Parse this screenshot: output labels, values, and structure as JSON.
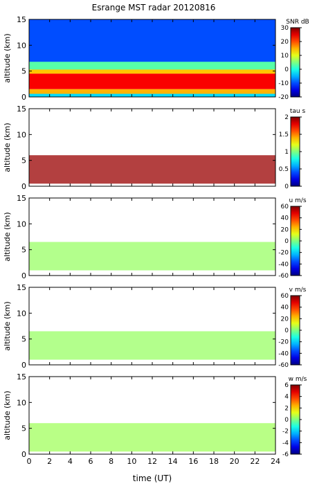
{
  "title": "Esrange MST radar 20120816",
  "xlabel": "time (UT)",
  "chart_data": {
    "type": "heatmap",
    "title": "Esrange MST radar 20120816",
    "xlabel": "time (UT)",
    "x_ticks": [
      0,
      2,
      4,
      6,
      8,
      10,
      12,
      14,
      16,
      18,
      20,
      22,
      24
    ],
    "xlim": [
      0,
      24
    ],
    "panels": [
      {
        "name": "snr",
        "ylabel": "altitude (km)",
        "ylim": [
          0,
          15
        ],
        "y_ticks": [
          0,
          5,
          10,
          15
        ],
        "colorbar_label": "SNR dB",
        "colorbar_ticks": [
          30,
          20,
          10,
          0,
          -10,
          -20
        ],
        "clim": [
          -20,
          30
        ],
        "colormap": "jet",
        "layers": [
          {
            "from_h": 0,
            "to_h": 24,
            "bottom_km": 6.5,
            "top_km": 15,
            "value": -10
          },
          {
            "from_h": 0,
            "to_h": 24,
            "bottom_km": 5.2,
            "top_km": 6.8,
            "value": 3
          },
          {
            "from_h": 0,
            "to_h": 24,
            "bottom_km": 4.5,
            "top_km": 5.3,
            "value": 14
          },
          {
            "from_h": 0,
            "to_h": 24,
            "bottom_km": 1.5,
            "top_km": 4.5,
            "value": 24
          },
          {
            "from_h": 0,
            "to_h": 24,
            "bottom_km": 0.6,
            "top_km": 1.5,
            "value": 15
          },
          {
            "from_h": 0,
            "to_h": 24,
            "bottom_km": 0,
            "top_km": 0.6,
            "value": -3
          }
        ]
      },
      {
        "name": "tau",
        "ylabel": "altitude (km)",
        "ylim": [
          0,
          15
        ],
        "y_ticks": [
          0,
          5,
          10,
          15
        ],
        "colorbar_label": "tau s",
        "colorbar_ticks": [
          2,
          1.5,
          1,
          0.5,
          0
        ],
        "clim": [
          0,
          2
        ],
        "colormap": "jet",
        "layers": [
          {
            "from_h": 0,
            "to_h": 24,
            "bottom_km": 0.5,
            "top_km": 6,
            "value": 1.95
          }
        ]
      },
      {
        "name": "u",
        "ylabel": "altitude (km)",
        "ylim": [
          0,
          15
        ],
        "y_ticks": [
          0,
          5,
          10,
          15
        ],
        "colorbar_label": "u m/s",
        "colorbar_ticks": [
          60,
          40,
          20,
          0,
          -20,
          -40,
          -60
        ],
        "clim": [
          -60,
          60
        ],
        "colormap": "jet",
        "layers": [
          {
            "from_h": 0,
            "to_h": 24,
            "bottom_km": 1,
            "top_km": 6.5,
            "value": 3
          }
        ]
      },
      {
        "name": "v",
        "ylabel": "altitude (km)",
        "ylim": [
          0,
          15
        ],
        "y_ticks": [
          0,
          5,
          10,
          15
        ],
        "colorbar_label": "v m/s",
        "colorbar_ticks": [
          60,
          40,
          20,
          0,
          -20,
          -40,
          -60
        ],
        "clim": [
          -60,
          60
        ],
        "colormap": "jet",
        "layers": [
          {
            "from_h": 0,
            "to_h": 24,
            "bottom_km": 1,
            "top_km": 6.5,
            "value": 3
          }
        ]
      },
      {
        "name": "w",
        "ylabel": "altitude (km)",
        "ylim": [
          0,
          15
        ],
        "y_ticks": [
          0,
          5,
          10,
          15
        ],
        "colorbar_label": "w m/s",
        "colorbar_ticks": [
          6,
          4,
          2,
          0,
          -2,
          -4,
          -6
        ],
        "clim": [
          -6,
          6
        ],
        "colormap": "jet",
        "layers": [
          {
            "from_h": 0,
            "to_h": 24,
            "bottom_km": 0.5,
            "top_km": 6,
            "value": 0.4
          }
        ]
      }
    ]
  }
}
